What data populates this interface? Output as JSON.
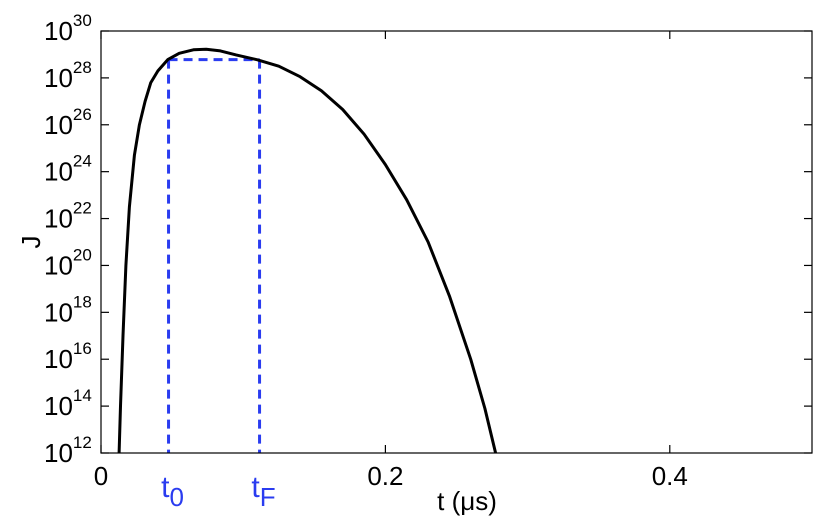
{
  "chart_data": {
    "type": "line",
    "xlabel": "t (μs)",
    "ylabel": "J",
    "xlim": [
      0,
      0.5
    ],
    "ylim_log10": [
      12,
      30
    ],
    "y_scale": "log",
    "grid": false,
    "legend": "none",
    "x_ticks": [
      {
        "value": 0,
        "label": "0"
      },
      {
        "value": 0.2,
        "label": "0.2"
      },
      {
        "value": 0.4,
        "label": "0.4"
      }
    ],
    "y_ticks": [
      {
        "exp": 12,
        "base": "10",
        "power": "12"
      },
      {
        "exp": 14,
        "base": "10",
        "power": "14"
      },
      {
        "exp": 16,
        "base": "10",
        "power": "16"
      },
      {
        "exp": 18,
        "base": "10",
        "power": "18"
      },
      {
        "exp": 20,
        "base": "10",
        "power": "20"
      },
      {
        "exp": 22,
        "base": "10",
        "power": "22"
      },
      {
        "exp": 24,
        "base": "10",
        "power": "24"
      },
      {
        "exp": 26,
        "base": "10",
        "power": "26"
      },
      {
        "exp": 28,
        "base": "10",
        "power": "28"
      },
      {
        "exp": 30,
        "base": "10",
        "power": "30"
      }
    ],
    "series": [
      {
        "color": "#000000",
        "style": "solid",
        "points": [
          {
            "t": 0.0127,
            "log10J": 12.0
          },
          {
            "t": 0.0137,
            "log10J": 14.0
          },
          {
            "t": 0.0155,
            "log10J": 17.0
          },
          {
            "t": 0.0175,
            "log10J": 20.0
          },
          {
            "t": 0.02,
            "log10J": 22.5
          },
          {
            "t": 0.0235,
            "log10J": 24.7
          },
          {
            "t": 0.027,
            "log10J": 26.0
          },
          {
            "t": 0.031,
            "log10J": 27.0
          },
          {
            "t": 0.035,
            "log10J": 27.8
          },
          {
            "t": 0.04,
            "log10J": 28.3
          },
          {
            "t": 0.047,
            "log10J": 28.78
          },
          {
            "t": 0.055,
            "log10J": 29.05
          },
          {
            "t": 0.065,
            "log10J": 29.2
          },
          {
            "t": 0.074,
            "log10J": 29.22
          },
          {
            "t": 0.084,
            "log10J": 29.15
          },
          {
            "t": 0.095,
            "log10J": 28.98
          },
          {
            "t": 0.11,
            "log10J": 28.77
          },
          {
            "t": 0.125,
            "log10J": 28.5
          },
          {
            "t": 0.14,
            "log10J": 28.05
          },
          {
            "t": 0.155,
            "log10J": 27.45
          },
          {
            "t": 0.17,
            "log10J": 26.65
          },
          {
            "t": 0.185,
            "log10J": 25.6
          },
          {
            "t": 0.2,
            "log10J": 24.3
          },
          {
            "t": 0.215,
            "log10J": 22.8
          },
          {
            "t": 0.23,
            "log10J": 21.0
          },
          {
            "t": 0.245,
            "log10J": 18.7
          },
          {
            "t": 0.26,
            "log10J": 16.0
          },
          {
            "t": 0.27,
            "log10J": 13.9
          },
          {
            "t": 0.2775,
            "log10J": 12.0
          }
        ]
      }
    ],
    "annotations": [
      {
        "type": "dashed-marker",
        "color": "#2a3cf0",
        "t": 0.0475,
        "log10J": 28.78,
        "base": "t",
        "sub": "0"
      },
      {
        "type": "dashed-marker",
        "color": "#2a3cf0",
        "t": 0.1115,
        "log10J": 28.78,
        "base": "t",
        "sub": "F"
      }
    ]
  }
}
